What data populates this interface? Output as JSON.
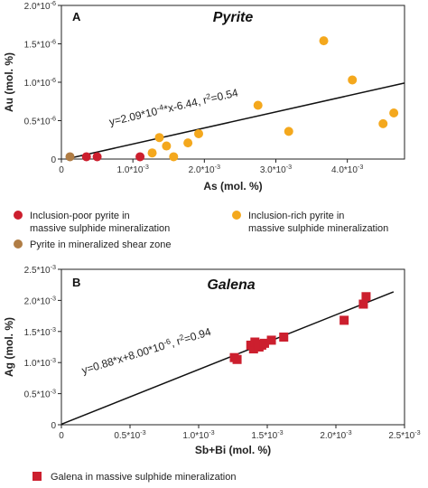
{
  "chart_data": [
    {
      "type": "scatter",
      "panel_label": "A",
      "title": "Pyrite",
      "xlabel": "As (mol. %)",
      "ylabel": "Au (mol. %)",
      "xlim": [
        0,
        0.0048
      ],
      "ylim": [
        0,
        2e-06
      ],
      "x_ticks": [
        {
          "value": 0,
          "label": "0"
        },
        {
          "value": 0.001,
          "label": "1.0*10-3"
        },
        {
          "value": 0.002,
          "label": "2.0*10-3"
        },
        {
          "value": 0.003,
          "label": "3.0*10-3"
        },
        {
          "value": 0.004,
          "label": "4.0*10-3"
        }
      ],
      "y_ticks": [
        {
          "value": 0,
          "label": "0"
        },
        {
          "value": 5e-07,
          "label": "0.5*10-6"
        },
        {
          "value": 1e-06,
          "label": "1.0*10-6"
        },
        {
          "value": 1.5e-06,
          "label": "1.5*10-6"
        },
        {
          "value": 2e-06,
          "label": "2.0*10-6"
        }
      ],
      "trendline": {
        "slope": 0.000209,
        "intercept_x": 6.44e-05,
        "x_end": 0.0048,
        "label": "y=2.09*10-4*x-6.44, r2=0.54"
      },
      "series": [
        {
          "name": "Inclusion-poor pyrite in massive sulphide mineralization",
          "color": "#cc1f2e",
          "points": [
            [
              0.00035,
              3e-08
            ],
            [
              0.0005,
              3e-08
            ],
            [
              0.0011,
              3e-08
            ]
          ]
        },
        {
          "name": "Inclusion-rich pyrite in massive sulphide mineralization",
          "color": "#f4a81d",
          "points": [
            [
              0.00127,
              8e-08
            ],
            [
              0.00137,
              2.8e-07
            ],
            [
              0.00147,
              1.7e-07
            ],
            [
              0.00157,
              3e-08
            ],
            [
              0.00177,
              2.1e-07
            ],
            [
              0.00192,
              3.3e-07
            ],
            [
              0.00275,
              7e-07
            ],
            [
              0.00318,
              3.6e-07
            ],
            [
              0.00367,
              1.54e-06
            ],
            [
              0.00407,
              1.03e-06
            ],
            [
              0.0045,
              4.6e-07
            ],
            [
              0.00465,
              6e-07
            ]
          ]
        },
        {
          "name": "Pyrite in mineralized shear zone",
          "color": "#b07d45",
          "points": [
            [
              0.00012,
              3e-08
            ]
          ]
        }
      ]
    },
    {
      "type": "scatter",
      "panel_label": "B",
      "title": "Galena",
      "xlabel": "Sb+Bi (mol. %)",
      "ylabel": "Ag (mol. %)",
      "xlim": [
        0,
        0.0025
      ],
      "ylim": [
        0,
        0.0025
      ],
      "x_ticks": [
        {
          "value": 0,
          "label": "0"
        },
        {
          "value": 0.0005,
          "label": "0.5*10-3"
        },
        {
          "value": 0.001,
          "label": "1.0*10-3"
        },
        {
          "value": 0.0015,
          "label": "1.5*10-3"
        },
        {
          "value": 0.002,
          "label": "2.0*10-3"
        },
        {
          "value": 0.0025,
          "label": "2.5*10-3"
        }
      ],
      "y_ticks": [
        {
          "value": 0,
          "label": "0"
        },
        {
          "value": 0.0005,
          "label": "0.5*10-3"
        },
        {
          "value": 0.001,
          "label": "1.0*10-3"
        },
        {
          "value": 0.0015,
          "label": "1.5*10-3"
        },
        {
          "value": 0.002,
          "label": "2.0*10-3"
        },
        {
          "value": 0.0025,
          "label": "2.5*10-3"
        }
      ],
      "trendline": {
        "slope": 0.88,
        "intercept": 8e-06,
        "x_end": 0.00242,
        "label": "y=0.88*x+8.00*10-6, r2=0.94"
      },
      "series": [
        {
          "name": "Galena in massive sulphide mineralization",
          "color": "#cc1f2e",
          "points": [
            [
              0.00126,
              0.00108
            ],
            [
              0.00128,
              0.00105
            ],
            [
              0.00138,
              0.00128
            ],
            [
              0.0014,
              0.00122
            ],
            [
              0.00141,
              0.00133
            ],
            [
              0.00143,
              0.0013
            ],
            [
              0.00144,
              0.00125
            ],
            [
              0.00146,
              0.00128
            ],
            [
              0.00148,
              0.00131
            ],
            [
              0.00153,
              0.00136
            ],
            [
              0.00162,
              0.00141
            ],
            [
              0.00206,
              0.00168
            ],
            [
              0.0022,
              0.00194
            ],
            [
              0.00222,
              0.00206
            ]
          ]
        }
      ]
    }
  ]
}
